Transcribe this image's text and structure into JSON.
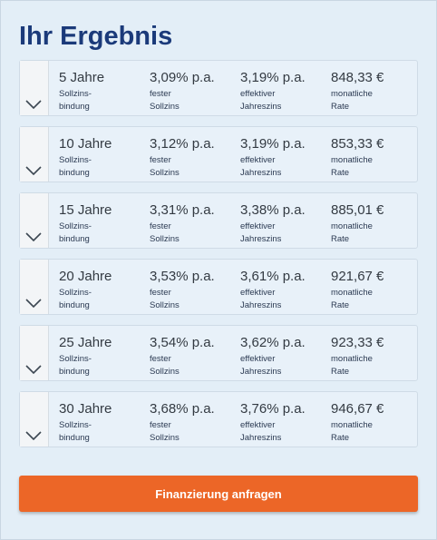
{
  "page": {
    "title": "Ihr Ergebnis"
  },
  "labels": {
    "zinsbindung": [
      "Sollzins-",
      "bindung"
    ],
    "sollzins": [
      "fester",
      "Sollzins"
    ],
    "effektiv": [
      "effektiver",
      "Jahreszins"
    ],
    "rate": [
      "monatliche",
      "Rate"
    ]
  },
  "rows": [
    {
      "years": "5 Jahre",
      "sollzins": "3,09% p.a.",
      "effektiv": "3,19% p.a.",
      "rate": "848,33 €"
    },
    {
      "years": "10 Jahre",
      "sollzins": "3,12% p.a.",
      "effektiv": "3,19% p.a.",
      "rate": "853,33 €"
    },
    {
      "years": "15 Jahre",
      "sollzins": "3,31% p.a.",
      "effektiv": "3,38% p.a.",
      "rate": "885,01 €"
    },
    {
      "years": "20 Jahre",
      "sollzins": "3,53% p.a.",
      "effektiv": "3,61% p.a.",
      "rate": "921,67 €"
    },
    {
      "years": "25 Jahre",
      "sollzins": "3,54% p.a.",
      "effektiv": "3,62% p.a.",
      "rate": "923,33 €"
    },
    {
      "years": "30 Jahre",
      "sollzins": "3,68% p.a.",
      "effektiv": "3,76% p.a.",
      "rate": "946,67 €"
    }
  ],
  "cta": {
    "label": "Finanzierung anfragen"
  },
  "icons": {
    "toggle": "chevron-down-icon"
  },
  "colors": {
    "title": "#1b3a7a",
    "cta": "#ec6627",
    "background": "#e3eef7"
  }
}
